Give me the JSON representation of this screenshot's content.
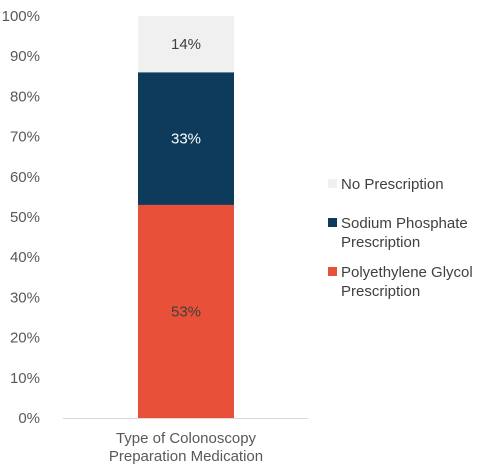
{
  "chart_data": {
    "type": "bar",
    "stacked": true,
    "categories": [
      "Type of Colonoscopy Preparation Medication"
    ],
    "category_lines": [
      "Type of Colonoscopy",
      "Preparation Medication"
    ],
    "series": [
      {
        "name": "Polyethylene Glycol Prescription",
        "name_lines": [
          "Polyethylene Glycol",
          "Prescription"
        ],
        "values": [
          53
        ],
        "label": "53%",
        "color": "#E8503A",
        "label_color": "#404040"
      },
      {
        "name": "Sodium Phosphate Prescription",
        "name_lines": [
          "Sodium Phosphate",
          "Prescription"
        ],
        "values": [
          33
        ],
        "label": "33%",
        "color": "#0E3A5C",
        "label_color": "#ffffff"
      },
      {
        "name": "No Prescription",
        "name_lines": [
          "No Prescription"
        ],
        "values": [
          14
        ],
        "label": "14%",
        "color": "#F0F0F0",
        "label_color": "#404040"
      }
    ],
    "yticks": [
      "0%",
      "10%",
      "20%",
      "30%",
      "40%",
      "50%",
      "60%",
      "70%",
      "80%",
      "90%",
      "100%"
    ],
    "ylim": [
      0,
      100
    ],
    "grid": false,
    "legend": "right",
    "axis_color": "#D9D9D9"
  }
}
